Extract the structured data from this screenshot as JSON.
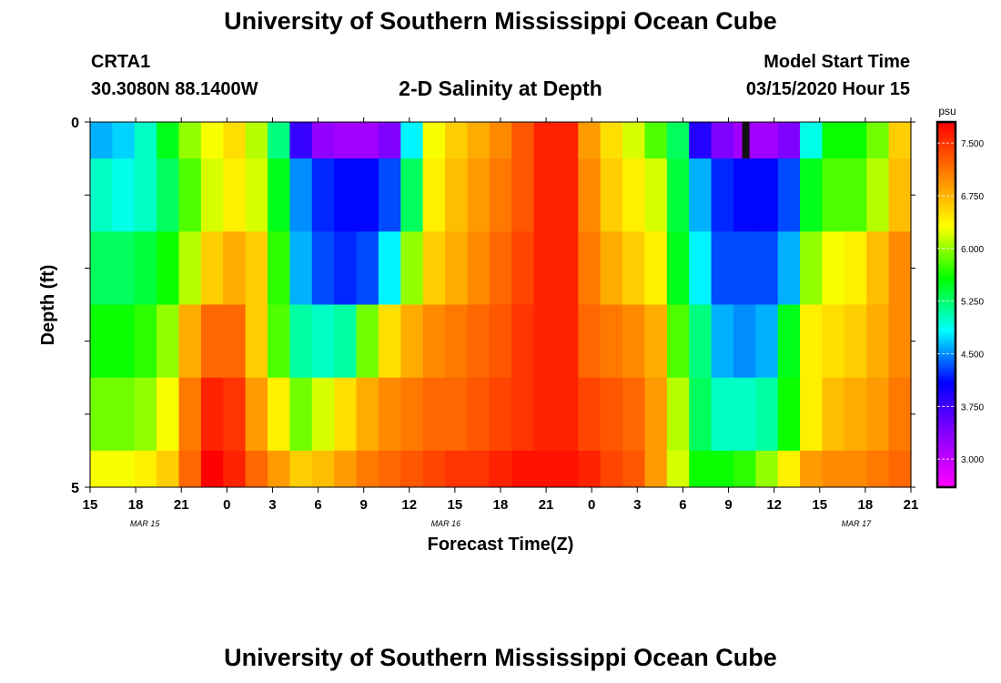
{
  "header": {
    "title": "University of Southern Mississippi Ocean Cube",
    "station_id": "CRTA1",
    "station_coords": "30.3080N 88.1400W",
    "plot_title": "2-D Salinity at Depth",
    "model_label": "Model Start Time",
    "model_time": "03/15/2020 Hour 15"
  },
  "footer": {
    "title": "University of Southern Mississippi Ocean Cube"
  },
  "colors": {
    "background": "#ffffff",
    "text": "#000000",
    "colorbar_stops": [
      "#ff00ff",
      "#8b00ff",
      "#0000ff",
      "#00ffff",
      "#00ff00",
      "#ffff00",
      "#ff8000",
      "#ff0000"
    ]
  },
  "chart_data": {
    "type": "heatmap",
    "title": "2-D Salinity at Depth",
    "xlabel": "Forecast Time(Z)",
    "ylabel": "Depth (ft)",
    "ylim": [
      0,
      5
    ],
    "y_tick_labels": [
      "0",
      "5"
    ],
    "x_tick_labels": [
      "15",
      "18",
      "21",
      "0",
      "3",
      "6",
      "9",
      "12",
      "15",
      "18",
      "21",
      "0",
      "3",
      "6",
      "9",
      "12",
      "15",
      "18",
      "21"
    ],
    "date_labels": [
      {
        "label": "MAR 15",
        "hour": 6
      },
      {
        "label": "MAR 16",
        "hour": 39
      },
      {
        "label": "MAR 17",
        "hour": 84
      }
    ],
    "x_hour_range": [
      0,
      54
    ],
    "colorbar": {
      "unit": "psu",
      "min": 2.6,
      "max": 7.8,
      "tick_labels": [
        "7.500",
        "6.750",
        "6.000",
        "5.250",
        "4.500",
        "3.750",
        "3.000"
      ],
      "tick_values": [
        7.5,
        6.75,
        6.0,
        5.25,
        4.5,
        3.75,
        3.0
      ]
    },
    "depth_rows": [
      "0-0.5 ft",
      "0.5-1.5 ft",
      "1.5-2.5 ft",
      "2.5-3.5 ft",
      "3.5-4.5 ft",
      "4.5-5 ft"
    ],
    "time_hours": [
      0,
      1.5,
      3,
      4.5,
      6,
      7.5,
      9,
      10.5,
      12,
      13.5,
      15,
      16.5,
      18,
      19.5,
      21,
      22.5,
      24,
      25.5,
      27,
      28.5,
      30,
      31.5,
      33,
      34.5,
      36,
      37.5,
      39,
      40.5,
      42,
      43.5,
      45,
      46.5,
      48,
      49.5,
      51,
      52.5,
      54
    ],
    "values": [
      [
        4.6,
        4.7,
        5.0,
        5.5,
        6.0,
        6.3,
        6.5,
        6.1,
        5.2,
        3.8,
        3.3,
        3.2,
        3.2,
        3.4,
        4.8,
        6.3,
        6.6,
        6.8,
        7.0,
        7.3,
        7.6,
        7.6,
        6.9,
        6.5,
        6.2,
        5.8,
        5.3,
        3.9,
        3.4,
        3.2,
        3.2,
        3.4,
        4.9,
        5.6,
        5.6,
        5.9,
        6.6
      ],
      [
        5.0,
        4.9,
        5.0,
        5.3,
        5.8,
        6.2,
        6.4,
        6.2,
        5.5,
        4.5,
        4.2,
        4.1,
        4.1,
        4.3,
        5.3,
        6.4,
        6.7,
        6.9,
        7.1,
        7.3,
        7.6,
        7.6,
        7.0,
        6.6,
        6.4,
        6.2,
        5.4,
        4.6,
        4.2,
        4.1,
        4.1,
        4.3,
        5.5,
        5.8,
        5.8,
        6.1,
        6.7
      ],
      [
        5.3,
        5.3,
        5.4,
        5.6,
        6.1,
        6.6,
        6.8,
        6.6,
        5.7,
        4.6,
        4.3,
        4.2,
        4.3,
        4.8,
        6.0,
        6.6,
        6.8,
        7.0,
        7.2,
        7.4,
        7.6,
        7.6,
        7.1,
        6.8,
        6.6,
        6.4,
        5.5,
        4.8,
        4.3,
        4.3,
        4.3,
        4.6,
        6.0,
        6.3,
        6.4,
        6.7,
        7.0
      ],
      [
        5.6,
        5.6,
        5.7,
        6.0,
        6.8,
        7.2,
        7.2,
        6.6,
        5.8,
        5.1,
        5.0,
        5.1,
        5.9,
        6.5,
        6.8,
        7.0,
        7.1,
        7.2,
        7.3,
        7.5,
        7.6,
        7.6,
        7.2,
        7.1,
        7.0,
        6.8,
        5.8,
        5.2,
        4.6,
        4.5,
        4.6,
        5.5,
        6.4,
        6.5,
        6.6,
        6.8,
        7.0
      ],
      [
        5.9,
        5.9,
        6.0,
        6.3,
        7.1,
        7.6,
        7.5,
        6.9,
        6.4,
        5.9,
        6.2,
        6.5,
        6.8,
        7.0,
        7.1,
        7.2,
        7.2,
        7.3,
        7.4,
        7.5,
        7.6,
        7.6,
        7.4,
        7.3,
        7.2,
        6.9,
        6.1,
        5.3,
        5.0,
        5.0,
        5.1,
        5.6,
        6.4,
        6.7,
        6.8,
        6.9,
        7.1
      ],
      [
        6.3,
        6.3,
        6.4,
        6.6,
        7.2,
        7.8,
        7.6,
        7.2,
        6.9,
        6.6,
        6.7,
        6.9,
        7.1,
        7.2,
        7.3,
        7.4,
        7.5,
        7.5,
        7.6,
        7.7,
        7.7,
        7.7,
        7.6,
        7.4,
        7.3,
        6.9,
        6.2,
        5.6,
        5.6,
        5.7,
        6.0,
        6.4,
        6.9,
        7.0,
        7.0,
        7.1,
        7.2
      ]
    ]
  },
  "labels": {
    "depth_axis": "Depth (ft)",
    "time_axis": "Forecast Time(Z)",
    "colorbar_unit": "psu"
  }
}
